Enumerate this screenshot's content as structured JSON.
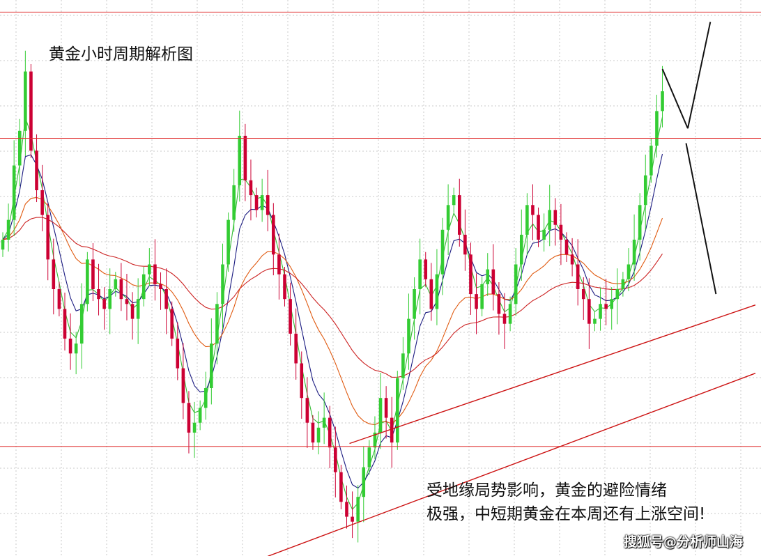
{
  "chart_data": {
    "type": "candlestick",
    "title": "黄金小时周期解析图",
    "annotation_lines": [
      "受地缘局势影响，黄金的避险情绪",
      "极强，中短期黄金在本周还有上涨空间!"
    ],
    "watermark": "搜狐号@分析师山海",
    "xlim": [
      0,
      117
    ],
    "ylim": [
      0,
      100
    ],
    "grid": true,
    "colors": {
      "bull": "#33cc33",
      "bear": "#cc0033",
      "ma_fast": "#33bb33",
      "ma_mid": "#1a1a80",
      "ma_slow": "#e05a10",
      "ma_long": "#cc2222",
      "level_line": "#e03030",
      "trend_line": "#cc1111",
      "arrow": "#111111"
    },
    "candle_close": [
      60,
      64,
      75,
      82,
      94,
      78,
      70,
      65,
      56,
      50,
      46,
      40,
      37,
      39,
      47,
      56,
      50,
      48,
      46,
      50,
      52,
      48,
      47,
      44,
      48,
      53,
      55,
      51,
      50,
      46,
      40,
      34,
      27,
      21,
      23,
      26,
      30,
      39,
      47,
      55,
      64,
      71,
      81,
      72,
      69,
      66,
      69,
      65,
      57,
      53,
      48,
      41,
      35,
      28,
      23,
      19,
      22,
      24,
      18,
      13,
      7,
      4,
      3,
      8,
      14,
      18,
      21,
      28,
      24,
      19,
      32,
      37,
      44,
      50,
      56,
      52,
      46,
      53,
      62,
      67,
      69,
      61,
      57,
      49,
      46,
      51,
      54,
      49,
      45,
      43,
      47,
      55,
      61,
      67,
      65,
      60,
      62,
      66,
      63,
      60,
      57,
      55,
      50,
      48,
      43,
      44,
      47,
      46,
      48,
      50,
      52,
      55,
      60,
      67,
      73,
      79,
      86,
      90
    ],
    "moving_averages": [
      {
        "key": "ma_fast",
        "period": 3
      },
      {
        "key": "ma_mid",
        "period": 6
      },
      {
        "key": "ma_slow",
        "period": 18
      },
      {
        "key": "ma_long",
        "period": 40
      }
    ],
    "horizontal_levels": [
      106,
      80.5,
      18.2
    ],
    "trend_lines": [
      {
        "from": [
          61.5,
          18.8
        ],
        "to": [
          133.5,
          46.8
        ]
      },
      {
        "from": [
          47,
          -4
        ],
        "to": [
          133.5,
          33
        ]
      }
    ],
    "projection_arrows": [
      {
        "from": [
          117,
          94.5
        ],
        "to": [
          121.5,
          82.5
        ]
      },
      {
        "from": [
          121.5,
          82.5
        ],
        "to": [
          125.5,
          104
        ]
      },
      {
        "from": [
          121.2,
          79.5
        ],
        "to": [
          126.5,
          49
        ]
      }
    ]
  }
}
